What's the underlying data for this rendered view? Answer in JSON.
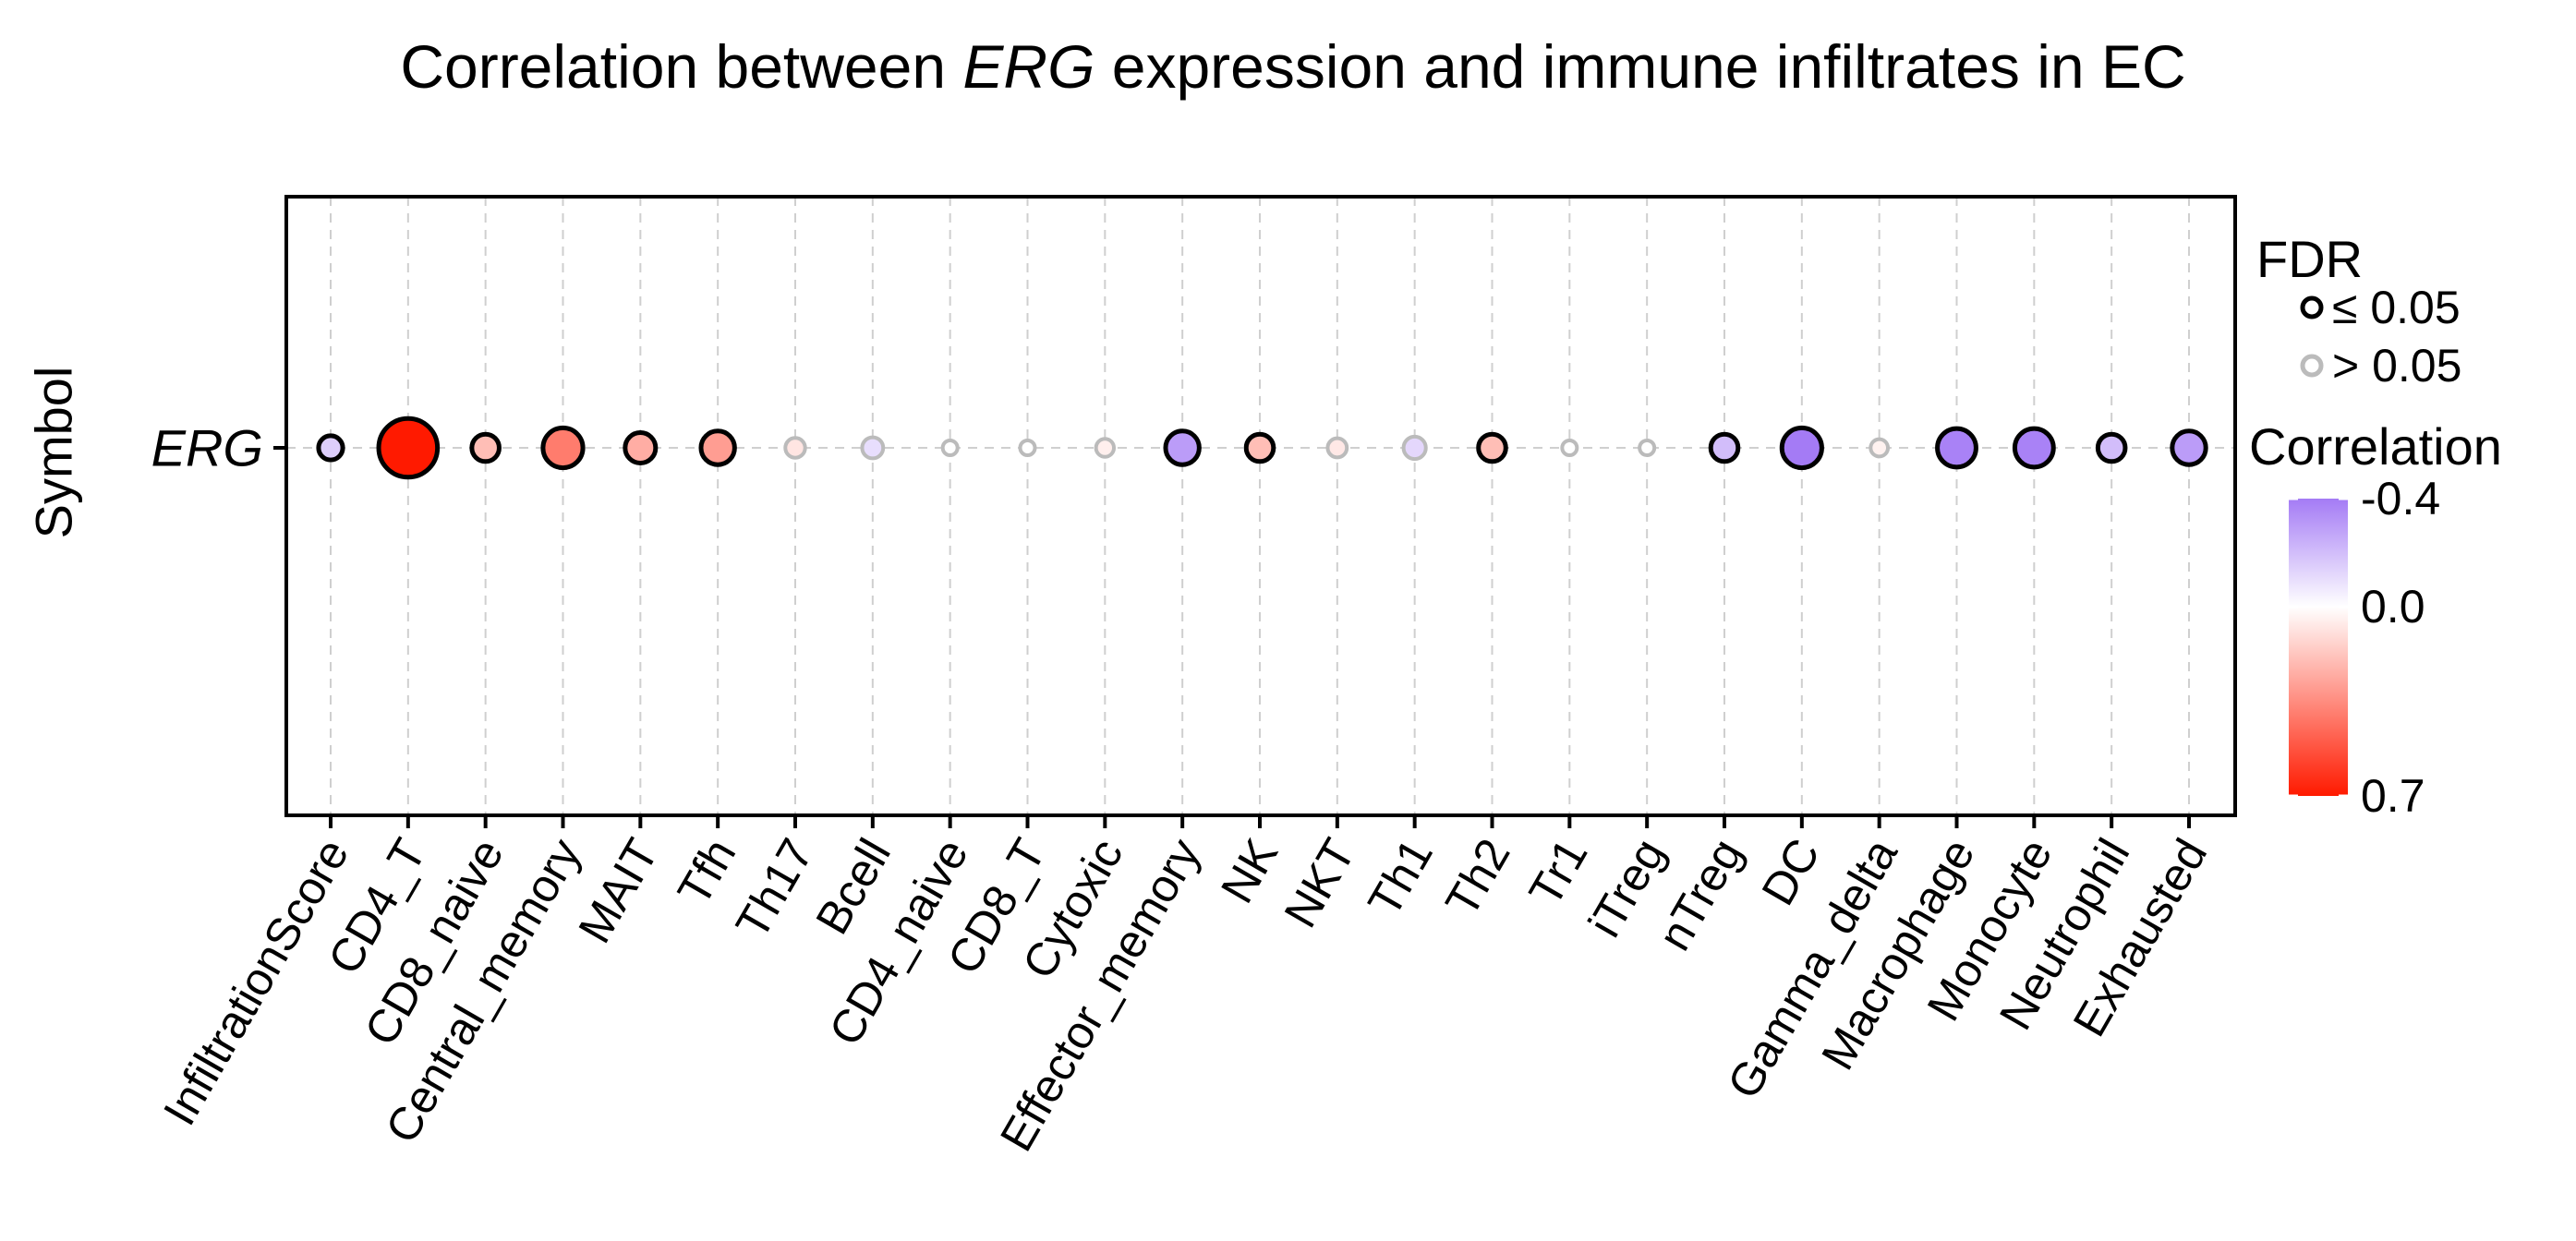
{
  "chart_data": {
    "type": "scatter",
    "title_parts": [
      {
        "text": "Correlation between ",
        "italic": false
      },
      {
        "text": "ERG",
        "italic": true
      },
      {
        "text": " expression and immune infiltrates in EC",
        "italic": false
      }
    ],
    "ylabel": "Symbol",
    "xlabel": "",
    "row_label": "ERG",
    "categories": [
      "InfiltrationScore",
      "CD4_T",
      "CD8_naive",
      "Central_memory",
      "MAIT",
      "Tfh",
      "Th17",
      "Bcell",
      "CD4_naive",
      "CD8_T",
      "Cytoxic",
      "Effector_memory",
      "NK",
      "NKT",
      "Th1",
      "Th2",
      "Tr1",
      "iTreg",
      "nTreg",
      "DC",
      "Gamma_delta",
      "Macrophage",
      "Monocyte",
      "Neutrophil",
      "Exhausted"
    ],
    "correlation": [
      -0.15,
      0.7,
      0.2,
      0.4,
      0.25,
      0.3,
      0.08,
      -0.1,
      0.0,
      0.0,
      0.05,
      -0.3,
      0.2,
      0.07,
      -0.12,
      0.2,
      0.0,
      0.0,
      -0.2,
      -0.4,
      0.04,
      -0.38,
      -0.38,
      -0.2,
      -0.3
    ],
    "fdr_significant": [
      true,
      true,
      true,
      true,
      true,
      true,
      false,
      false,
      false,
      false,
      false,
      true,
      true,
      false,
      false,
      true,
      false,
      false,
      true,
      true,
      false,
      true,
      true,
      true,
      true
    ],
    "grid": true,
    "legend": {
      "position": "right",
      "fdr_title": "FDR",
      "fdr_items": [
        {
          "label": "≤ 0.05",
          "significant": true
        },
        {
          "label": "> 0.05",
          "significant": false
        }
      ],
      "color_title": "Correlation",
      "color_ticks": [
        "-0.4",
        "0.0",
        "0.7"
      ],
      "color_range": [
        -0.4,
        0.7
      ]
    },
    "colors": {
      "low": "#A47BF5",
      "mid": "#FFFFFF",
      "high": "#FF1A00",
      "significant_border": "#000000",
      "nonsignificant_border": "#BBBBBB",
      "grid": "#CFCFCF",
      "frame": "#000000"
    }
  }
}
